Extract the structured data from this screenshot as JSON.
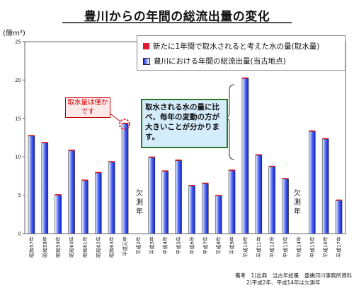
{
  "title": "豊川からの年間の総流出量の変化",
  "unit_label": "(億ｍ³)",
  "legend": {
    "intake": "新たに1年間で取水されると考えた水の量(取水量)",
    "total": "豊川における年間の総流出量(当古地点)"
  },
  "callouts": {
    "intake_small": "取水量は僅かです",
    "variation": "取水される水の量に比べ、毎年の変動の方が大きいことが分かります。"
  },
  "missing_label": "欠測年",
  "notes": {
    "line1": "備考　1)出典　当古年総量　豊橋河川事務所資料",
    "line2": "2)平成2年、平成14年は欠測年"
  },
  "colors": {
    "intake": "#e0192c",
    "total": "#1a2fd9"
  },
  "chart_data": {
    "type": "bar",
    "ylim": [
      0,
      25
    ],
    "yticks": [
      0,
      5,
      10,
      15,
      20,
      25
    ],
    "ytick_labels": [
      "0",
      "5",
      "10",
      "15",
      "20",
      "25"
    ],
    "grid": false,
    "legend_position": "top-right",
    "categories": [
      "昭和57年",
      "昭和58年",
      "昭和59年",
      "昭和60年",
      "昭和61年",
      "昭和62年",
      "昭和63年",
      "平成元年",
      "平成2年",
      "平成3年",
      "平成4年",
      "平成5年",
      "平成6年",
      "平成7年",
      "平成8年",
      "平成9年",
      "平成10年",
      "平成11年",
      "平成12年",
      "平成13年",
      "平成14年",
      "平成15年",
      "平成16年",
      "平成17年"
    ],
    "series": [
      {
        "name": "豊川における年間の総流出量(当古地点)",
        "values": [
          12.7,
          11.8,
          5.0,
          10.8,
          6.9,
          7.9,
          9.3,
          14.3,
          null,
          9.9,
          8.1,
          9.5,
          6.2,
          6.5,
          4.9,
          8.2,
          20.2,
          10.2,
          8.7,
          7.1,
          null,
          13.3,
          12.3,
          4.3
        ]
      },
      {
        "name": "新たに1年間で取水されると考えた水の量(取水量)",
        "values": [
          0.07,
          0.07,
          0.07,
          0.07,
          0.07,
          0.07,
          0.07,
          0.07,
          null,
          0.07,
          0.07,
          0.07,
          0.07,
          0.07,
          0.07,
          0.07,
          0.07,
          0.07,
          0.07,
          0.07,
          null,
          0.07,
          0.07,
          0.07
        ]
      }
    ]
  }
}
